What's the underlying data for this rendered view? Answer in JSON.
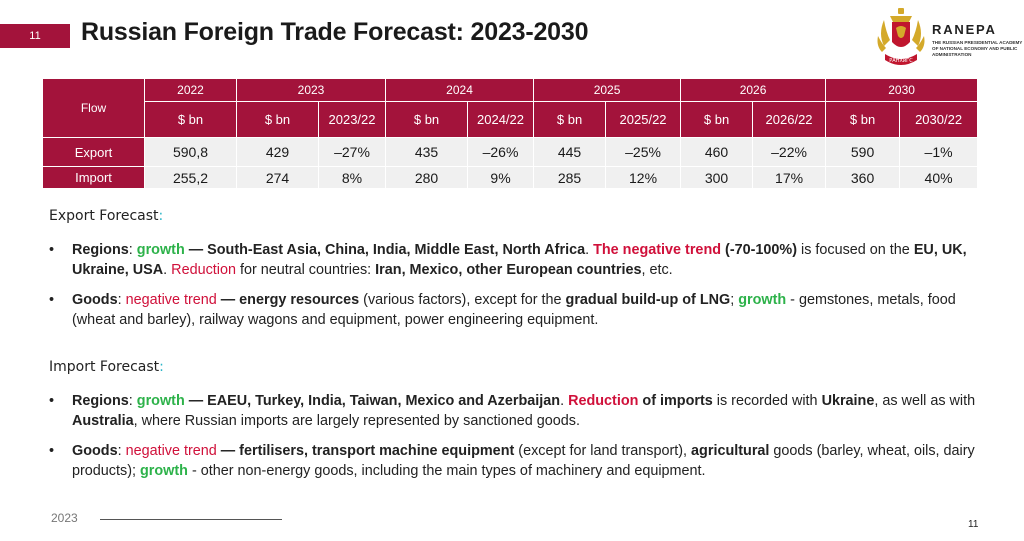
{
  "slide": {
    "number": "11",
    "title": "Russian Foreign Trade Forecast: 2023-2030"
  },
  "logo": {
    "name": "RANEPA",
    "subtitle": "THE RUSSIAN PRESIDENTIAL ACADEMY OF NATIONAL ECONOMY AND PUBLIC ADMINISTRATION",
    "emblem_label": "РАНХиГС"
  },
  "table": {
    "flow_header": "Flow",
    "years": [
      "2022",
      "2023",
      "2024",
      "2025",
      "2026",
      "2030"
    ],
    "subheaders": [
      "$ bn",
      "$ bn",
      "2023/22",
      "$ bn",
      "2024/22",
      "$ bn",
      "2025/22",
      "$ bn",
      "2026/22",
      "$ bn",
      "2030/22"
    ],
    "rows": [
      {
        "label": "Export",
        "cells": [
          "590,8",
          "429",
          "–27%",
          "435",
          "–26%",
          "445",
          "–25%",
          "460",
          "–22%",
          "590",
          "–1%"
        ]
      },
      {
        "label": "Import",
        "cells": [
          "255,2",
          "274",
          "8%",
          "280",
          "9%",
          "285",
          "12%",
          "300",
          "17%",
          "360",
          "40%"
        ]
      }
    ]
  },
  "export_forecast": {
    "heading": "Export Forecast",
    "colon": ":",
    "regions": {
      "t1": "Regions",
      "t2": ": ",
      "t3": "growth",
      "t4": " — South-East Asia, China, India, Middle East, North Africa",
      "t5": ". ",
      "t6": "The negative trend",
      "t7": " (-70-100%)",
      "t8": " is focused on the ",
      "t9": "EU, UK, Ukraine, USA",
      "t10": ". ",
      "t11": "Reduction",
      "t12": " for neutral countries: ",
      "t13": "Iran, Mexico, other European countries",
      "t14": ", etc."
    },
    "goods": {
      "t1": "Goods",
      "t2": ": ",
      "t3": "negative trend",
      "t4": " — energy resources",
      "t5": " (various factors), except for the ",
      "t6": "gradual build-up of LNG",
      "t7": "; ",
      "t8": "growth",
      "t9": " - gemstones, metals, food (wheat and barley), railway wagons and equipment, power engineering equipment."
    }
  },
  "import_forecast": {
    "heading": "Import Forecast",
    "colon": ":",
    "regions": {
      "t1": "Regions",
      "t2": ": ",
      "t3": "growth",
      "t4": " — EAEU, Turkey, India, Taiwan, Mexico and Azerbaijan",
      "t5": ". ",
      "t6": "Reduction",
      "t7": " of imports",
      "t8": " is recorded with ",
      "t9": "Ukraine",
      "t10": ", as well as with ",
      "t11": "Australia",
      "t12": ", where Russian imports are largely represented by sanctioned goods."
    },
    "goods": {
      "t1": "Goods",
      "t2": ": ",
      "t3": "negative trend",
      "t4": " — fertilisers, transport machine equipment",
      "t5": " (except for land transport), ",
      "t6": "agricultural",
      "t7": " goods (barley, wheat, oils, dairy products); ",
      "t8": "growth",
      "t9": " - other non-energy goods, including the main types of machinery and equipment."
    }
  },
  "footer": {
    "year": "2023",
    "page": "11"
  },
  "colors": {
    "accent": "#a3133b",
    "negative": "#d0103a",
    "positive": "#2db24a",
    "cell_bg": "#f0f0f0"
  }
}
